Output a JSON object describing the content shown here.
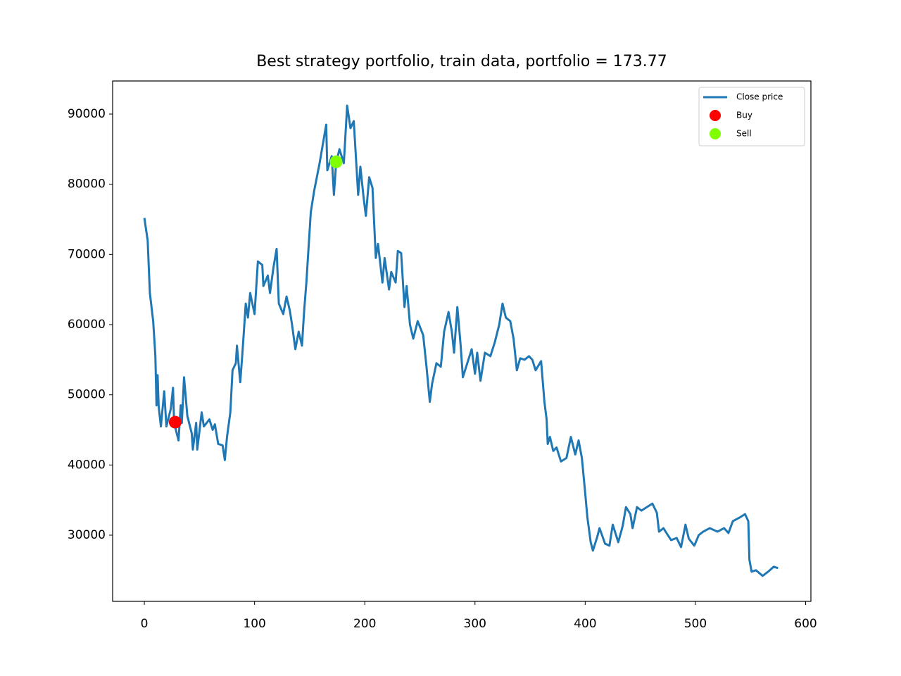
{
  "chart_data": {
    "type": "line",
    "title": "Best strategy portfolio, train data, portfolio = 173.77",
    "xlim": [
      -28.8,
      604.8
    ],
    "ylim": [
      20570,
      94716
    ],
    "xticks": [
      0,
      100,
      200,
      300,
      400,
      500,
      600
    ],
    "yticks": [
      30000,
      40000,
      50000,
      60000,
      70000,
      80000,
      90000
    ],
    "grid": false,
    "legend": "upper right",
    "series": [
      {
        "name": "Close price",
        "color": "#1f77b4",
        "kind": "line",
        "x": [
          0,
          3,
          5,
          8,
          10,
          11,
          12,
          13,
          15,
          18,
          20,
          24,
          26,
          27,
          31,
          33,
          34,
          36,
          39,
          43,
          44,
          47,
          48,
          52,
          54,
          59,
          62,
          64,
          67,
          71,
          73,
          75,
          78,
          80,
          83,
          84,
          87,
          89,
          92,
          94,
          96,
          100,
          103,
          107,
          108,
          112,
          114,
          117,
          120,
          122,
          126,
          129,
          132,
          134,
          137,
          140,
          143,
          145,
          147,
          149,
          151,
          154,
          159,
          165,
          166,
          170,
          172,
          174,
          177,
          181,
          184,
          187,
          190,
          194,
          196,
          199,
          201,
          204,
          207,
          210,
          212,
          216,
          218,
          222,
          224,
          228,
          230,
          233,
          236,
          238,
          241,
          244,
          248,
          253,
          256,
          259,
          261,
          265,
          269,
          272,
          276,
          279,
          281,
          284,
          287,
          289,
          293,
          297,
          300,
          302,
          305,
          309,
          314,
          318,
          322,
          325,
          328,
          332,
          335,
          338,
          341,
          345,
          349,
          352,
          355,
          360,
          363,
          365,
          366,
          368,
          371,
          374,
          378,
          383,
          387,
          391,
          394,
          397,
          400,
          402,
          405,
          407,
          411,
          413,
          418,
          422,
          425,
          430,
          434,
          437,
          441,
          443,
          447,
          451,
          456,
          461,
          465,
          467,
          471,
          475,
          478,
          483,
          487,
          491,
          494,
          499,
          503,
          507,
          513,
          520,
          526,
          530,
          534,
          540,
          545,
          548,
          549,
          551,
          555,
          561,
          566,
          571,
          575
        ],
        "values": [
          75200,
          72000,
          64500,
          60500,
          55500,
          48500,
          52800,
          48300,
          45500,
          50500,
          45500,
          48000,
          51000,
          46000,
          43500,
          48500,
          46000,
          52500,
          47000,
          44500,
          42200,
          46000,
          42200,
          47500,
          45500,
          46500,
          45000,
          45800,
          43000,
          42800,
          40700,
          44000,
          47500,
          53500,
          54500,
          57000,
          51800,
          56000,
          63000,
          61000,
          64500,
          61500,
          69000,
          68500,
          65500,
          67000,
          64500,
          68000,
          70800,
          63000,
          61500,
          64000,
          62000,
          60000,
          56500,
          59000,
          57000,
          62000,
          66000,
          71000,
          76000,
          79000,
          83000,
          88500,
          82000,
          84000,
          78500,
          83000,
          85000,
          83000,
          91200,
          88000,
          89000,
          78500,
          82500,
          78000,
          75500,
          81000,
          79500,
          69500,
          71500,
          66000,
          69500,
          65000,
          67500,
          66000,
          70500,
          70200,
          62500,
          65500,
          60000,
          58000,
          60500,
          58500,
          54000,
          49000,
          51500,
          54500,
          54000,
          59000,
          61800,
          59000,
          56000,
          62500,
          57000,
          52500,
          54500,
          56500,
          53000,
          56000,
          52000,
          56000,
          55500,
          57500,
          60000,
          63000,
          61000,
          60500,
          58000,
          53500,
          55200,
          55000,
          55500,
          55000,
          53500,
          54800,
          49000,
          46500,
          43000,
          44000,
          42000,
          42500,
          40500,
          41000,
          44000,
          41500,
          43500,
          41000,
          36000,
          32500,
          29000,
          27800,
          29800,
          31000,
          28800,
          28500,
          31500,
          29000,
          31300,
          34000,
          33000,
          31000,
          34000,
          33500,
          34000,
          34500,
          33200,
          30500,
          31000,
          30000,
          29300,
          29600,
          28300,
          31500,
          29500,
          28500,
          30000,
          30500,
          31000,
          30500,
          31000,
          30300,
          32000,
          32500,
          33000,
          32000,
          26500,
          24800,
          25000,
          24200,
          24800,
          25500,
          25300
        ]
      },
      {
        "name": "Buy",
        "color": "#ff0000",
        "kind": "scatter",
        "x": [
          28
        ],
        "values": [
          46100
        ]
      },
      {
        "name": "Sell",
        "color": "#7fff00",
        "kind": "scatter",
        "x": [
          174
        ],
        "values": [
          83200
        ]
      }
    ]
  }
}
